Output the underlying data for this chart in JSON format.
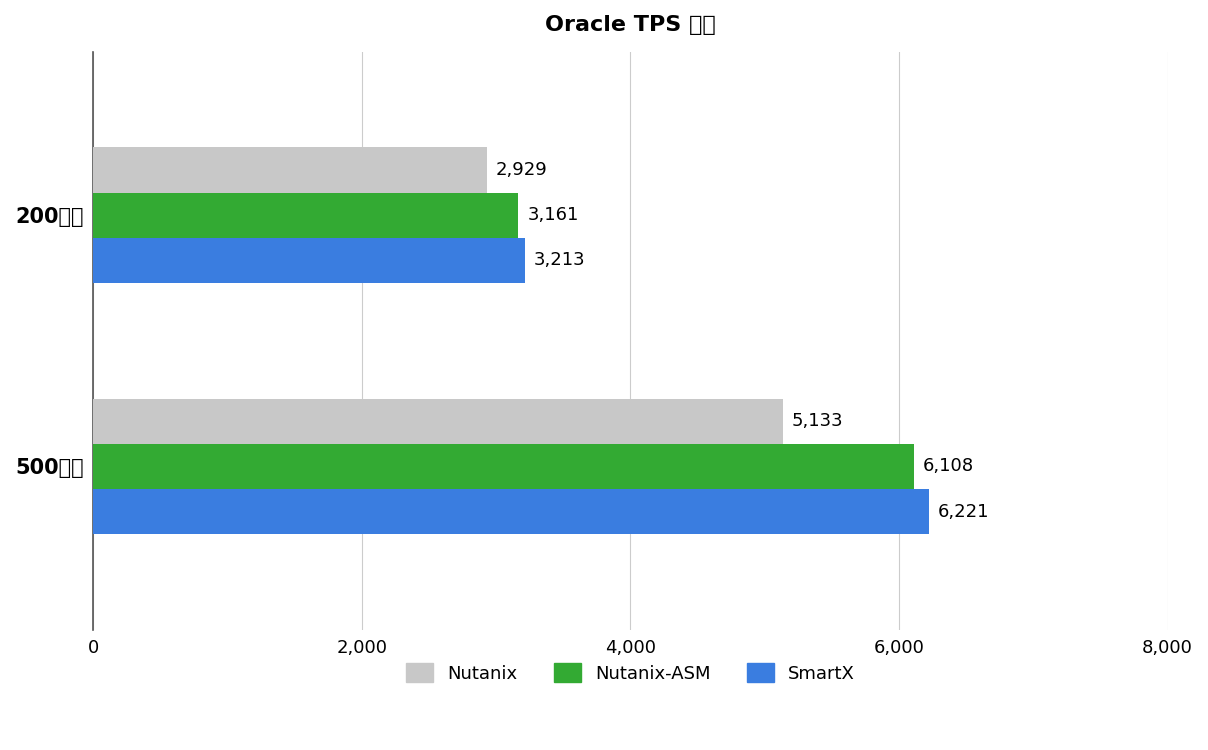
{
  "title": "Oracle TPS 区间",
  "categories": [
    "500并发",
    "200并发"
  ],
  "series": {
    "Nutanix": [
      5133,
      2929
    ],
    "Nutanix-ASM": [
      6108,
      3161
    ],
    "SmartX": [
      6221,
      3213
    ]
  },
  "colors": {
    "Nutanix": "#c8c8c8",
    "Nutanix-ASM": "#33aa33",
    "SmartX": "#3a7de0"
  },
  "xlim": [
    0,
    8000
  ],
  "xticks": [
    0,
    2000,
    4000,
    6000,
    8000
  ],
  "xticklabels": [
    "0",
    "2,000",
    "4,000",
    "6,000",
    "8,000"
  ],
  "bar_height": 0.18,
  "title_fontsize": 16,
  "label_fontsize": 13,
  "tick_fontsize": 13,
  "legend_fontsize": 13,
  "value_labels": {
    "Nutanix": [
      "5,133",
      "2,929"
    ],
    "Nutanix-ASM": [
      "6,108",
      "3,161"
    ],
    "SmartX": [
      "6,221",
      "3,213"
    ]
  },
  "background_color": "#ffffff"
}
